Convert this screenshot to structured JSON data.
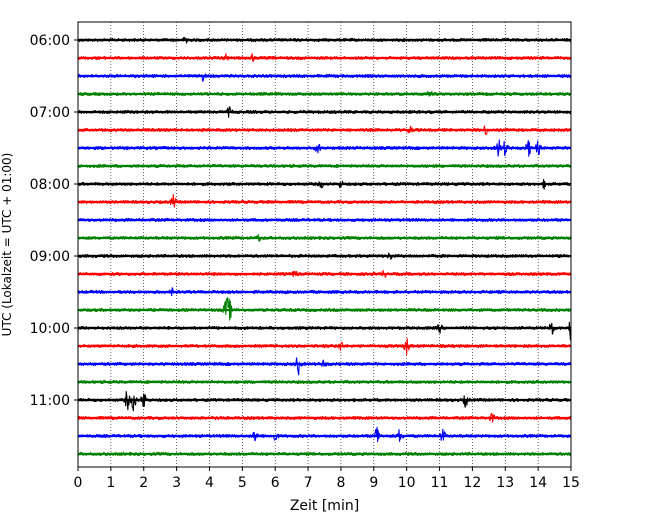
{
  "chart_data": {
    "type": "line",
    "title": "",
    "xlabel": "Zeit  [min]",
    "ylabel": "UTC (Lokalzeit = UTC + 01:00)",
    "xlim": [
      0,
      15
    ],
    "x_ticks": [
      "0",
      "1",
      "2",
      "3",
      "4",
      "5",
      "6",
      "7",
      "8",
      "9",
      "10",
      "11",
      "12",
      "13",
      "14",
      "15"
    ],
    "y_ticks": [
      "06:00",
      "07:00",
      "08:00",
      "09:00",
      "10:00",
      "11:00"
    ],
    "grid": "vertical dotted",
    "trace_interval_minutes": 15,
    "start_time": "06:00",
    "color_cycle": [
      "#000000",
      "#ff0000",
      "#0000ff",
      "#008000"
    ],
    "traces": [
      {
        "start": "06:00",
        "events": [
          [
            3.3,
            6
          ]
        ]
      },
      {
        "start": "06:15",
        "events": [
          [
            4.5,
            3
          ],
          [
            5.3,
            3
          ]
        ]
      },
      {
        "start": "06:30",
        "events": [
          [
            3.8,
            4
          ]
        ]
      },
      {
        "start": "06:45",
        "events": [
          [
            10.7,
            3
          ]
        ]
      },
      {
        "start": "07:00",
        "events": [
          [
            4.6,
            4
          ]
        ]
      },
      {
        "start": "07:15",
        "events": [
          [
            10.1,
            4
          ],
          [
            12.4,
            4
          ]
        ]
      },
      {
        "start": "07:30",
        "events": [
          [
            7.3,
            5
          ],
          [
            12.8,
            8
          ],
          [
            13.0,
            7
          ],
          [
            13.7,
            8
          ],
          [
            14.0,
            6
          ]
        ]
      },
      {
        "start": "07:45",
        "events": []
      },
      {
        "start": "08:00",
        "events": [
          [
            7.4,
            3
          ],
          [
            8.0,
            3
          ],
          [
            14.2,
            4
          ]
        ]
      },
      {
        "start": "08:15",
        "events": [
          [
            2.9,
            6
          ]
        ]
      },
      {
        "start": "08:30",
        "events": []
      },
      {
        "start": "08:45",
        "events": [
          [
            5.5,
            3
          ]
        ]
      },
      {
        "start": "09:00",
        "events": [
          [
            9.5,
            3
          ]
        ]
      },
      {
        "start": "09:15",
        "events": [
          [
            6.6,
            3
          ],
          [
            9.3,
            3
          ]
        ]
      },
      {
        "start": "09:30",
        "events": [
          [
            2.9,
            4
          ]
        ]
      },
      {
        "start": "09:45",
        "events": [
          [
            4.5,
            10
          ],
          [
            4.6,
            11
          ]
        ]
      },
      {
        "start": "10:00",
        "events": [
          [
            11.0,
            4
          ],
          [
            14.4,
            9
          ],
          [
            15.0,
            11
          ]
        ]
      },
      {
        "start": "10:15",
        "events": [
          [
            8.0,
            4
          ],
          [
            10.0,
            9
          ]
        ]
      },
      {
        "start": "10:30",
        "events": [
          [
            6.7,
            10
          ],
          [
            7.5,
            4
          ]
        ]
      },
      {
        "start": "10:45",
        "events": []
      },
      {
        "start": "11:00",
        "events": [
          [
            1.5,
            9
          ],
          [
            1.7,
            11
          ],
          [
            2.0,
            9
          ],
          [
            11.8,
            6
          ]
        ]
      },
      {
        "start": "11:15",
        "events": [
          [
            4.3,
            3
          ],
          [
            12.6,
            4
          ]
        ]
      },
      {
        "start": "11:30",
        "events": [
          [
            5.4,
            6
          ],
          [
            6.0,
            5
          ],
          [
            9.1,
            11
          ],
          [
            9.8,
            7
          ],
          [
            11.1,
            7
          ]
        ]
      },
      {
        "start": "11:45",
        "events": []
      }
    ]
  }
}
